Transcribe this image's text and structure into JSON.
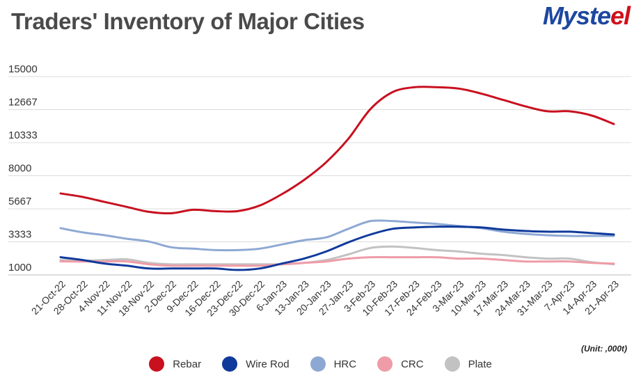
{
  "header": {
    "title": "Traders' Inventory of Major Cities"
  },
  "logo": {
    "text_main": "Myste",
    "text_accent": "el"
  },
  "unit_label": "(Unit: ,000t)",
  "chart_data": {
    "type": "line",
    "title": "Traders' Inventory of Major Cities",
    "xlabel": "",
    "ylabel": "",
    "ylim": [
      1000,
      15000
    ],
    "yticks": [
      1000,
      3333,
      5667,
      8000,
      10333,
      12667,
      15000
    ],
    "grid": true,
    "legend": "bottom-center",
    "categories": [
      "21-Oct-22",
      "28-Oct-22",
      "4-Nov-22",
      "11-Nov-22",
      "18-Nov-22",
      "2-Dec-22",
      "9-Dec-22",
      "16-Dec-22",
      "23-Dec-22",
      "30-Dec-22",
      "6-Jan-23",
      "13-Jan-23",
      "20-Jan-23",
      "27-Jan-23",
      "3-Feb-23",
      "10-Feb-23",
      "17-Feb-23",
      "24-Feb-23",
      "3-Mar-23",
      "10-Mar-23",
      "17-Mar-23",
      "24-Mar-23",
      "31-Mar-23",
      "7-Apr-23",
      "14-Apr-23",
      "21-Apr-23"
    ],
    "series": [
      {
        "name": "Rebar",
        "color": "#c8101f",
        "values": [
          6750,
          6500,
          6150,
          5800,
          5450,
          5350,
          5600,
          5500,
          5500,
          5900,
          6700,
          7700,
          8950,
          10600,
          12700,
          13900,
          14250,
          14250,
          14150,
          13800,
          13350,
          12900,
          12550,
          12550,
          12250,
          11650
        ]
      },
      {
        "name": "Wire Rod",
        "color": "#0f3a9b",
        "values": [
          2250,
          2050,
          1800,
          1650,
          1450,
          1450,
          1450,
          1450,
          1350,
          1450,
          1800,
          2150,
          2650,
          3300,
          3850,
          4250,
          4350,
          4400,
          4400,
          4350,
          4200,
          4100,
          4050,
          4050,
          3950,
          3850
        ]
      },
      {
        "name": "HRC",
        "color": "#8ea8d4",
        "values": [
          4300,
          4000,
          3800,
          3550,
          3350,
          2950,
          2850,
          2750,
          2750,
          2850,
          3150,
          3450,
          3650,
          4250,
          4800,
          4800,
          4700,
          4600,
          4450,
          4300,
          4050,
          3900,
          3800,
          3750,
          3750,
          3750
        ]
      },
      {
        "name": "CRC",
        "color": "#ef9ca8",
        "values": [
          1950,
          1950,
          1950,
          1950,
          1750,
          1650,
          1650,
          1650,
          1650,
          1650,
          1750,
          1850,
          1950,
          2150,
          2250,
          2250,
          2250,
          2250,
          2150,
          2150,
          2050,
          1950,
          1950,
          1950,
          1850,
          1800
        ]
      },
      {
        "name": "Plate",
        "color": "#c2c2c2",
        "values": [
          2050,
          2000,
          2050,
          2100,
          1850,
          1750,
          1750,
          1750,
          1750,
          1750,
          1750,
          1850,
          2050,
          2450,
          2900,
          3000,
          2900,
          2750,
          2650,
          2500,
          2400,
          2250,
          2150,
          2150,
          1900,
          1750
        ]
      }
    ]
  }
}
